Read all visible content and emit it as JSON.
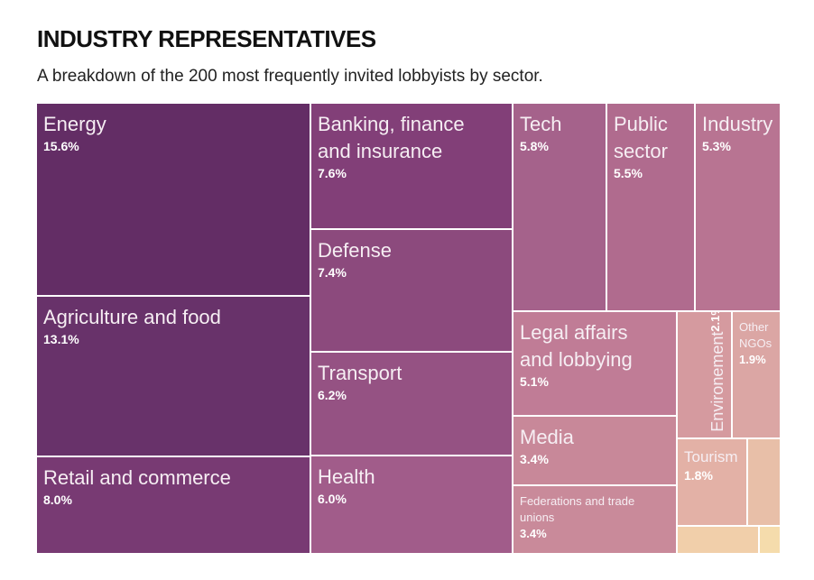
{
  "title": "INDUSTRY REPRESENTATIVES",
  "subtitle": "A breakdown of the 200 most frequently invited lobbyists by sector.",
  "chart_data": {
    "type": "treemap",
    "title": "INDUSTRY REPRESENTATIVES",
    "subtitle": "A breakdown of the 200 most frequently invited lobbyists by sector.",
    "unit": "%",
    "items": [
      {
        "name": "Energy",
        "value": 15.6,
        "label": "Energy",
        "pct": "15.6%",
        "color": "#632d65"
      },
      {
        "name": "Agriculture and food",
        "value": 13.1,
        "label": "Agriculture and food",
        "pct": "13.1%",
        "color": "#68326a"
      },
      {
        "name": "Retail and commerce",
        "value": 8.0,
        "label": "Retail and commerce",
        "pct": "8.0%",
        "color": "#783a73"
      },
      {
        "name": "Banking, finance and insurance",
        "value": 7.6,
        "label": "Banking, finance\nand insurance",
        "pct": "7.6%",
        "color": "#823f78"
      },
      {
        "name": "Defense",
        "value": 7.4,
        "label": "Defense",
        "pct": "7.4%",
        "color": "#8c4a7d"
      },
      {
        "name": "Transport",
        "value": 6.2,
        "label": "Transport",
        "pct": "6.2%",
        "color": "#955283"
      },
      {
        "name": "Health",
        "value": 6.0,
        "label": "Health",
        "pct": "6.0%",
        "color": "#a15c8a"
      },
      {
        "name": "Tech",
        "value": 5.8,
        "label": "Tech",
        "pct": "5.8%",
        "color": "#a5628b"
      },
      {
        "name": "Public sector",
        "value": 5.5,
        "label": "Public\nsector",
        "pct": "5.5%",
        "color": "#b06b8e"
      },
      {
        "name": "Industry",
        "value": 5.3,
        "label": "Industry",
        "pct": "5.3%",
        "color": "#b87492"
      },
      {
        "name": "Legal affairs and lobbying",
        "value": 5.1,
        "label": "Legal affairs\nand lobbying",
        "pct": "5.1%",
        "color": "#c07c96"
      },
      {
        "name": "Media",
        "value": 3.4,
        "label": "Media",
        "pct": "3.4%",
        "color": "#c88899"
      },
      {
        "name": "Federations and trade unions",
        "value": 3.4,
        "label": "Federations and trade\nunions",
        "pct": "3.4%",
        "color": "#c98a9a"
      },
      {
        "name": "Environement",
        "value": 2.1,
        "label": "Environement",
        "pct": "2.1%",
        "color": "#d59a9f"
      },
      {
        "name": "Other NGOs",
        "value": 1.9,
        "label": "Other\nNGOs",
        "pct": "1.9%",
        "color": "#dba6a4"
      },
      {
        "name": "Tourism",
        "value": 1.8,
        "label": "Tourism",
        "pct": "1.8%",
        "color": "#e3b1a6"
      },
      {
        "name": "Unlabeled 1",
        "value": null,
        "label": "",
        "pct": "",
        "color": "#e8bfa8"
      },
      {
        "name": "Unlabeled 2",
        "value": null,
        "label": "",
        "pct": "",
        "color": "#f1cfaa"
      },
      {
        "name": "Unlabeled 3",
        "value": null,
        "label": "",
        "pct": "",
        "color": "#f5dcac"
      }
    ]
  }
}
